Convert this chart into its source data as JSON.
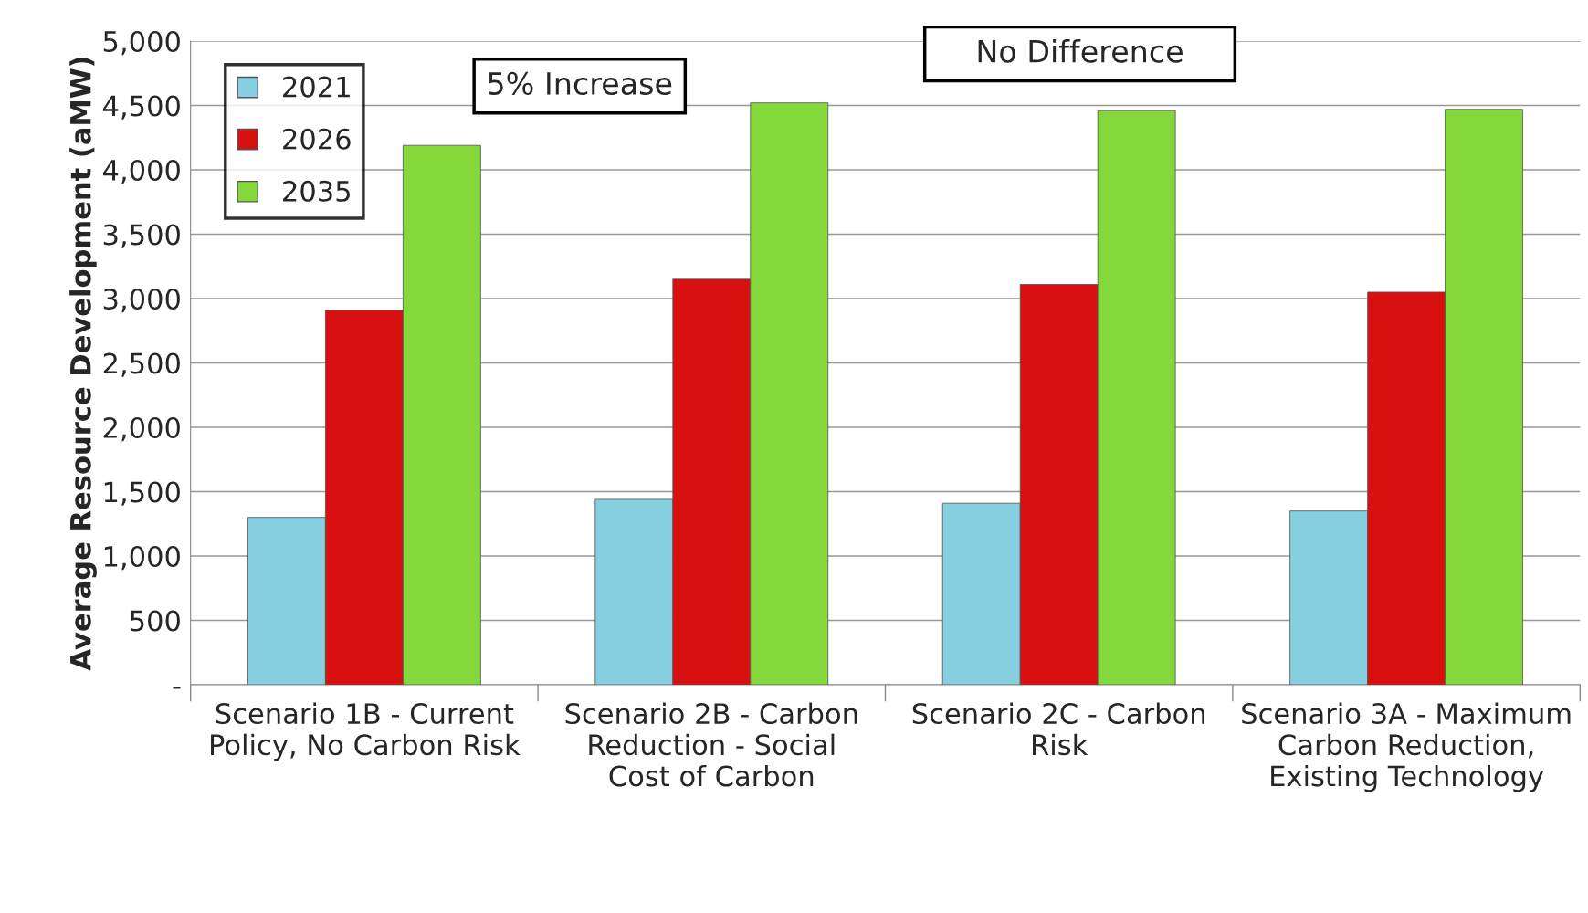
{
  "chart_data": {
    "type": "bar",
    "ylabel": "Average Resource Development (aMW)",
    "categories": [
      "Scenario 1B - Current Policy, No Carbon Risk",
      "Scenario 2B - Carbon Reduction - Social Cost of Carbon",
      "Scenario 2C - Carbon Risk",
      "Scenario 3A - Maximum Carbon Reduction, Existing Technology"
    ],
    "series": [
      {
        "name": "2021",
        "color": "#86cfe0",
        "values": [
          1300,
          1440,
          1410,
          1350
        ]
      },
      {
        "name": "2026",
        "color": "#d81010",
        "values": [
          2910,
          3150,
          3110,
          3050
        ]
      },
      {
        "name": "2035",
        "color": "#84d83c",
        "values": [
          4190,
          4520,
          4460,
          4470
        ]
      }
    ],
    "ylim": [
      0,
      5000
    ],
    "yticks": [
      {
        "value": 0,
        "label": "-"
      },
      {
        "value": 500,
        "label": "500"
      },
      {
        "value": 1000,
        "label": "1,000"
      },
      {
        "value": 1500,
        "label": "1,500"
      },
      {
        "value": 2000,
        "label": "2,000"
      },
      {
        "value": 2500,
        "label": "2,500"
      },
      {
        "value": 3000,
        "label": "3,000"
      },
      {
        "value": 3500,
        "label": "3,500"
      },
      {
        "value": 4000,
        "label": "4,000"
      },
      {
        "value": 4500,
        "label": "4,500"
      },
      {
        "value": 5000,
        "label": "5,000"
      }
    ],
    "grid": "y",
    "legend": "top left",
    "annotations": [
      "5% Increase",
      "No Difference"
    ]
  }
}
